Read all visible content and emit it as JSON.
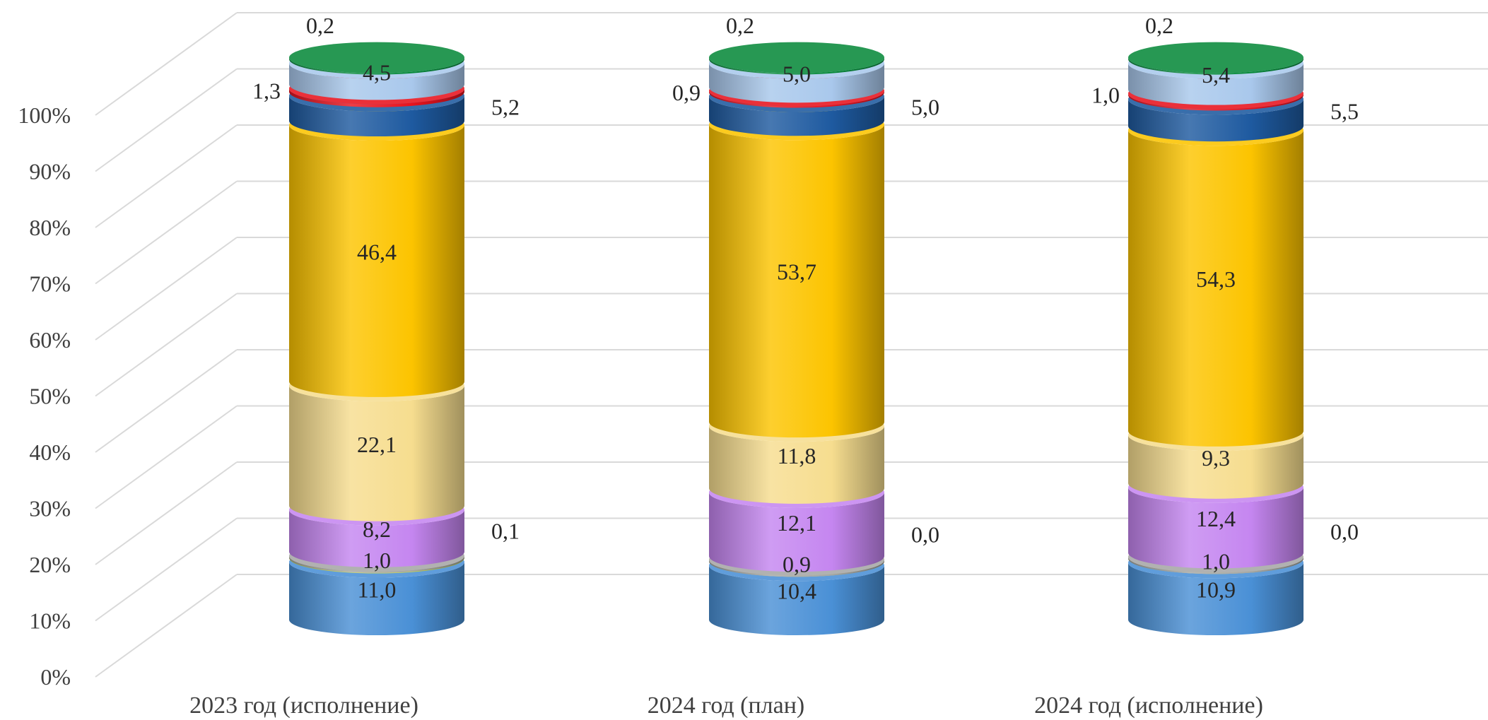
{
  "chart_data": {
    "type": "bar",
    "subtype": "stacked-100-percent-cylinder-3d",
    "categories": [
      "2023 год (исполнение)",
      "2024 год (план)",
      "2024 год (исполнение)"
    ],
    "ylim": [
      0,
      100
    ],
    "yticks": [
      "0%",
      "10%",
      "20%",
      "30%",
      "40%",
      "50%",
      "60%",
      "70%",
      "80%",
      "90%",
      "100%"
    ],
    "grid": true,
    "legend": "none",
    "series": [
      {
        "values": [
          11.0,
          10.4,
          10.9
        ],
        "labels": [
          "11,0",
          "10,4",
          "10,9"
        ],
        "color": "#4a90d6",
        "label_pos": "inside"
      },
      {
        "values": [
          0.1,
          0.0,
          0.0
        ],
        "labels": [
          "0,1",
          "0,0",
          "0,0"
        ],
        "color": "#c9d64a",
        "label_pos": "right"
      },
      {
        "values": [
          1.0,
          0.9,
          1.0
        ],
        "labels": [
          "1,0",
          "0,9",
          "1,0"
        ],
        "color": "#a6a6a6",
        "label_pos": "inside"
      },
      {
        "values": [
          8.2,
          12.1,
          12.4
        ],
        "labels": [
          "8,2",
          "12,1",
          "12,4"
        ],
        "color": "#c586f0",
        "label_pos": "inside"
      },
      {
        "values": [
          22.1,
          11.8,
          9.3
        ],
        "labels": [
          "22,1",
          "11,8",
          "9,3"
        ],
        "color": "#f6dd8f",
        "label_pos": "inside"
      },
      {
        "values": [
          46.4,
          53.7,
          54.3
        ],
        "labels": [
          "46,4",
          "53,7",
          "54,3"
        ],
        "color": "#fcc400",
        "label_pos": "inside"
      },
      {
        "values": [
          5.2,
          5.0,
          5.5
        ],
        "labels": [
          "5,2",
          "5,0",
          "5,5"
        ],
        "color": "#1e5aa0",
        "label_pos": "right"
      },
      {
        "values": [
          1.3,
          0.9,
          1.0
        ],
        "labels": [
          "1,3",
          "0,9",
          "1,0"
        ],
        "color": "#e8141e",
        "label_pos": "left"
      },
      {
        "values": [
          4.5,
          5.0,
          5.4
        ],
        "labels": [
          "4,5",
          "5,0",
          "5,4"
        ],
        "color": "#a9c8ec",
        "label_pos": "inside"
      },
      {
        "values": [
          0.2,
          0.2,
          0.2
        ],
        "labels": [
          "0,2",
          "0,2",
          "0,2"
        ],
        "color": "#0a8a3c",
        "label_pos": "top"
      }
    ]
  }
}
